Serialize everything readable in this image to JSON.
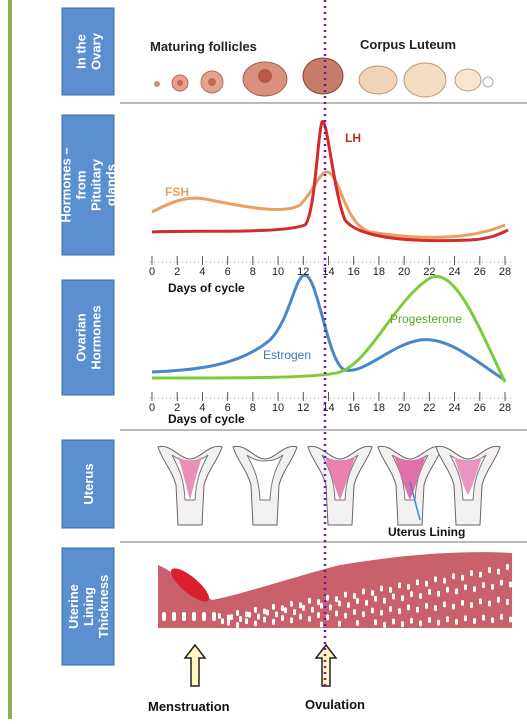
{
  "ovary": {
    "label": [
      "In the",
      "Ovary"
    ],
    "stages": [
      "Maturing follicles",
      "Corpus Luteum"
    ]
  },
  "pituitary": {
    "label": [
      "Hormones –",
      "from",
      "Pituitary",
      "glands"
    ],
    "curves": [
      "FSH",
      "LH"
    ],
    "axis": {
      "title": "Days of cycle",
      "ticks": [
        "0",
        "2",
        "4",
        "6",
        "8",
        "10",
        "12",
        "14",
        "16",
        "18",
        "20",
        "22",
        "24",
        "26",
        "28"
      ]
    }
  },
  "ovarian": {
    "label": [
      "Ovarian",
      "Hormones"
    ],
    "curves": [
      "Estrogen",
      "Progesterone"
    ],
    "axis": {
      "title": "Days of cycle",
      "ticks": [
        "0",
        "2",
        "4",
        "6",
        "8",
        "10",
        "12",
        "14",
        "16",
        "18",
        "20",
        "22",
        "24",
        "26",
        "28"
      ]
    }
  },
  "uterus": {
    "label": [
      "Uterus"
    ],
    "callout": "Uterus Lining"
  },
  "lining": {
    "label": [
      "Uterine",
      "Lining",
      "Thickness"
    ],
    "events": [
      "Menstruation",
      "Ovulation"
    ]
  }
}
